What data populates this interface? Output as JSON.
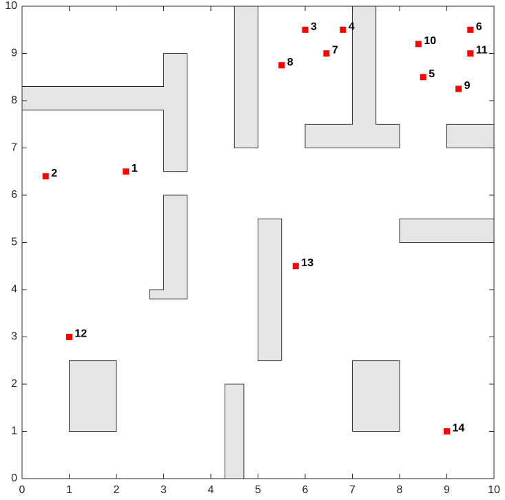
{
  "chart_data": {
    "type": "scatter",
    "x": [
      2.2,
      0.5,
      6,
      6.8,
      8.5,
      9.5,
      6.45,
      5.5,
      9.25,
      8.4,
      9.5,
      1,
      5.8,
      9
    ],
    "values": [
      6.5,
      6.4,
      9.5,
      9.5,
      8.5,
      9.5,
      9.0,
      8.75,
      8.25,
      9.2,
      9.0,
      3,
      4.5,
      1
    ],
    "labels": [
      "1",
      "2",
      "3",
      "4",
      "5",
      "6",
      "7",
      "8",
      "9",
      "10",
      "11",
      "12",
      "13",
      "14"
    ],
    "color": "#ff0000",
    "obstacle_color": "#e5e5e5",
    "obstacles": [
      {
        "x": [
          0,
          3,
          3,
          3.5,
          3.5,
          3,
          3,
          0
        ],
        "y": [
          8.3,
          8.3,
          9,
          9,
          6.5,
          6.5,
          7.8,
          7.8
        ]
      },
      {
        "x": [
          3,
          3.5,
          3.5,
          2.7,
          2.7,
          3
        ],
        "y": [
          6,
          6,
          3.8,
          3.8,
          4,
          4
        ]
      },
      {
        "x": [
          4.5,
          5,
          5,
          4.5
        ],
        "y": [
          10,
          10,
          7,
          7
        ]
      },
      {
        "x": [
          7,
          7.5,
          7.5,
          8,
          8,
          6,
          6,
          7
        ],
        "y": [
          10,
          10,
          7.5,
          7.5,
          7,
          7,
          7.5,
          7.5
        ]
      },
      {
        "x": [
          9,
          10,
          10,
          9
        ],
        "y": [
          7.5,
          7.5,
          7,
          7
        ]
      },
      {
        "x": [
          8,
          10,
          10,
          8
        ],
        "y": [
          5.5,
          5.5,
          5,
          5
        ]
      },
      {
        "x": [
          5,
          5.5,
          5.5,
          5
        ],
        "y": [
          5.5,
          5.5,
          2.5,
          2.5
        ]
      },
      {
        "x": [
          1,
          2,
          2,
          1
        ],
        "y": [
          2.5,
          2.5,
          1,
          1
        ]
      },
      {
        "x": [
          7,
          8,
          8,
          7
        ],
        "y": [
          2.5,
          2.5,
          1,
          1
        ]
      },
      {
        "x": [
          4.3,
          4.7,
          4.7,
          4.3
        ],
        "y": [
          2,
          2,
          0,
          0
        ]
      }
    ],
    "xlim": [
      0,
      10
    ],
    "ylim": [
      0,
      10
    ],
    "xticks": [
      0,
      1,
      2,
      3,
      4,
      5,
      6,
      7,
      8,
      9,
      10
    ],
    "yticks": [
      0,
      1,
      2,
      3,
      4,
      5,
      6,
      7,
      8,
      9,
      10
    ]
  }
}
